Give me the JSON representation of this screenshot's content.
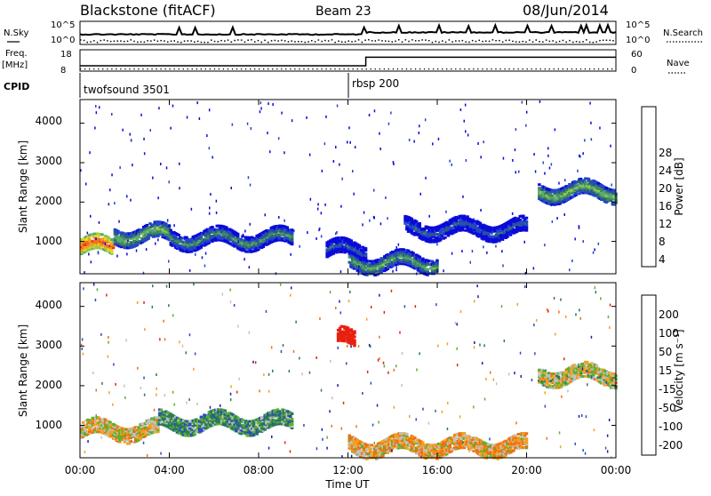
{
  "header": {
    "radar": "Blackstone (fitACF)",
    "beam": "Beam 23",
    "date": "08/Jun/2014"
  },
  "noise_panel": {
    "left_label": "N.Sky",
    "right_label": "N.Search",
    "left_ticks": [
      "10^5",
      "10^0"
    ],
    "right_ticks": [
      "10^5",
      "10^0"
    ]
  },
  "freq_panel": {
    "left_label_1": "Freq.",
    "left_label_2": "[MHz]",
    "right_label": "Nave",
    "left_ticks": [
      "18",
      "8"
    ],
    "right_ticks": [
      "60",
      "0"
    ]
  },
  "cpid": {
    "label": "CPID",
    "segments": [
      {
        "name": "twofsound 3501",
        "start_hour": 0
      },
      {
        "name": "rbsp 200",
        "start_hour": 12
      }
    ]
  },
  "x_axis": {
    "label": "Time UT",
    "ticks": [
      "00:00",
      "04:00",
      "08:00",
      "12:00",
      "16:00",
      "20:00",
      "00:00"
    ]
  },
  "power_panel": {
    "ylabel": "Slant Range [km]",
    "yticks": [
      "4000",
      "3000",
      "2000",
      "1000"
    ],
    "colorbar_label": "Power [dB]",
    "colorbar_ticks": [
      "28",
      "24",
      "20",
      "16",
      "12",
      "8",
      "4"
    ],
    "colors": [
      "#0a0ad8",
      "#2244cc",
      "#2a5a8a",
      "#3d8a5a",
      "#5aa870",
      "#9ac84a",
      "#e8d820",
      "#f0a020",
      "#f07020",
      "#e83020",
      "#d80a0a"
    ]
  },
  "velocity_panel": {
    "ylabel": "Slant Range [km]",
    "yticks": [
      "4000",
      "3000",
      "2000",
      "1000"
    ],
    "colorbar_label": "Velocity [m s⁻¹]",
    "colorbar_ticks": [
      "200",
      "100",
      "50",
      "15",
      "-15",
      "-50",
      "-100",
      "-200"
    ],
    "colors": [
      "#1a1ab0",
      "#2a4ac0",
      "#2a7a5a",
      "#5ab030",
      "#c0c0c0",
      "#f0a020",
      "#f07010",
      "#e82010"
    ]
  },
  "chart_data": {
    "type": "heatmap",
    "title": "Blackstone (fitACF)  Beam 23  08/Jun/2014",
    "xlabel": "Time UT",
    "ylabel": "Slant Range [km]",
    "xlim_hours": [
      0,
      24
    ],
    "ylim_km": [
      180,
      4600
    ],
    "panels": [
      "Power [dB]",
      "Velocity [m s⁻¹]"
    ],
    "freq_mhz": [
      {
        "start_hour": 0,
        "end_hour": 12.8,
        "value": 10.5
      },
      {
        "start_hour": 12.8,
        "end_hour": 24,
        "value": 14.5
      }
    ],
    "power_features": [
      {
        "t0": 0.0,
        "t1": 1.5,
        "r_km": 900,
        "value_db": 26
      },
      {
        "t0": 1.5,
        "t1": 4.0,
        "r_km": 1200,
        "value_db": 14
      },
      {
        "t0": 4.0,
        "t1": 9.5,
        "r_km": 1100,
        "value_db": 10
      },
      {
        "t0": 11.0,
        "t1": 12.8,
        "r_km": 800,
        "value_db": 6
      },
      {
        "t0": 12.0,
        "t1": 16.0,
        "r_km": 500,
        "value_db": 12
      },
      {
        "t0": 14.5,
        "t1": 20.0,
        "r_km": 1350,
        "value_db": 6
      },
      {
        "t0": 20.5,
        "t1": 24.0,
        "r_km": 2300,
        "value_db": 14
      }
    ],
    "velocity_features": [
      {
        "t0": 0.0,
        "t1": 3.5,
        "r_km": 900,
        "value_ms": -15
      },
      {
        "t0": 3.5,
        "t1": 9.5,
        "r_km": 1100,
        "value_ms": 60
      },
      {
        "t0": 11.5,
        "t1": 12.3,
        "r_km": 3200,
        "value_ms": -200
      },
      {
        "t0": 12.0,
        "t1": 20.0,
        "r_km": 500,
        "value_ms": -30
      },
      {
        "t0": 20.5,
        "t1": 24.0,
        "r_km": 2300,
        "value_ms": 0
      }
    ]
  }
}
